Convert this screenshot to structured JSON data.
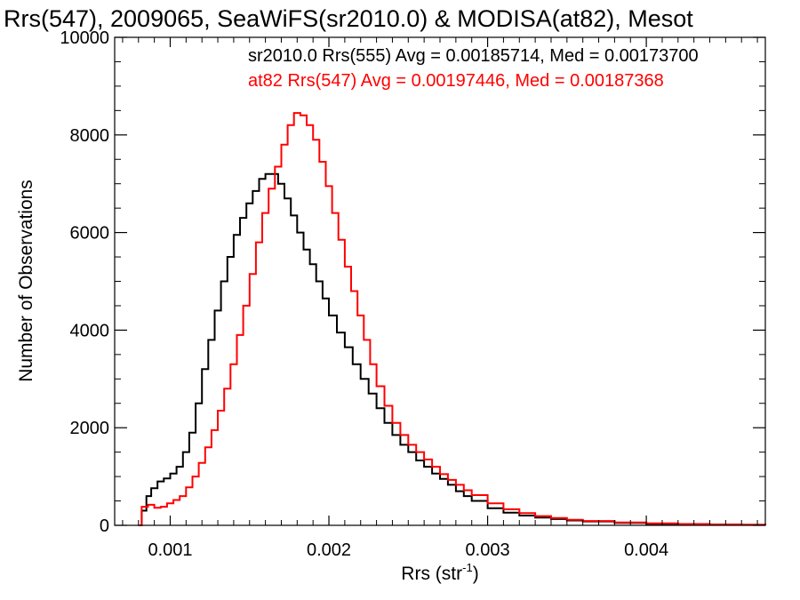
{
  "chart_data": {
    "type": "line",
    "title": "Rrs(547), 2009065, SeaWiFS(sr2010.0) & MODISA(at82), Mesot",
    "xlabel_main": "Rrs (str",
    "xlabel_sup": "-1",
    "xlabel_tail": ")",
    "ylabel": "Number of Observations",
    "xlim": [
      0.00065,
      0.00475
    ],
    "ylim": [
      0,
      10000
    ],
    "x_ticks": [
      0.001,
      0.002,
      0.003,
      0.004
    ],
    "x_tick_labels": [
      "0.001",
      "0.002",
      "0.003",
      "0.004"
    ],
    "y_ticks": [
      0,
      2000,
      4000,
      6000,
      8000,
      10000
    ],
    "y_tick_labels": [
      "0",
      "2000",
      "4000",
      "6000",
      "8000",
      "10000"
    ],
    "grid": false,
    "legend_position": "top-right",
    "series": [
      {
        "name": "sr2010.0 Rrs(555) Avg = 0.00185714, Med = 0.00173700",
        "color": "#000000",
        "points": [
          [
            0.0008,
            0
          ],
          [
            0.00082,
            300
          ],
          [
            0.00085,
            600
          ],
          [
            0.00088,
            760
          ],
          [
            0.00092,
            900
          ],
          [
            0.00096,
            960
          ],
          [
            0.001,
            1060
          ],
          [
            0.00104,
            1200
          ],
          [
            0.00108,
            1500
          ],
          [
            0.00112,
            1900
          ],
          [
            0.00116,
            2500
          ],
          [
            0.0012,
            3200
          ],
          [
            0.00124,
            3800
          ],
          [
            0.00128,
            4400
          ],
          [
            0.00132,
            5000
          ],
          [
            0.00136,
            5500
          ],
          [
            0.0014,
            5950
          ],
          [
            0.00144,
            6300
          ],
          [
            0.00148,
            6600
          ],
          [
            0.00152,
            6850
          ],
          [
            0.00156,
            7100
          ],
          [
            0.0016,
            7200
          ],
          [
            0.00164,
            7200
          ],
          [
            0.00168,
            7000
          ],
          [
            0.00172,
            6700
          ],
          [
            0.00176,
            6350
          ],
          [
            0.0018,
            6000
          ],
          [
            0.00184,
            5650
          ],
          [
            0.00188,
            5350
          ],
          [
            0.00192,
            5000
          ],
          [
            0.00196,
            4650
          ],
          [
            0.002,
            4300
          ],
          [
            0.00205,
            3950
          ],
          [
            0.0021,
            3650
          ],
          [
            0.00215,
            3300
          ],
          [
            0.0022,
            3000
          ],
          [
            0.00225,
            2700
          ],
          [
            0.0023,
            2400
          ],
          [
            0.00235,
            2100
          ],
          [
            0.0024,
            1850
          ],
          [
            0.00245,
            1650
          ],
          [
            0.0025,
            1500
          ],
          [
            0.00255,
            1330
          ],
          [
            0.0026,
            1200
          ],
          [
            0.00265,
            1060
          ],
          [
            0.0027,
            950
          ],
          [
            0.00275,
            830
          ],
          [
            0.0028,
            700
          ],
          [
            0.00285,
            600
          ],
          [
            0.0029,
            500
          ],
          [
            0.003,
            350
          ],
          [
            0.0031,
            260
          ],
          [
            0.0032,
            200
          ],
          [
            0.0033,
            160
          ],
          [
            0.0034,
            130
          ],
          [
            0.0035,
            100
          ],
          [
            0.0036,
            80
          ],
          [
            0.0038,
            50
          ],
          [
            0.004,
            30
          ],
          [
            0.0042,
            20
          ],
          [
            0.0044,
            15
          ],
          [
            0.0046,
            10
          ],
          [
            0.00475,
            5
          ]
        ]
      },
      {
        "name": "at82 Rrs(547) Avg = 0.00197446, Med = 0.00187368",
        "color": "#ff0000",
        "points": [
          [
            0.0008,
            0
          ],
          [
            0.00082,
            380
          ],
          [
            0.00086,
            420
          ],
          [
            0.0009,
            360
          ],
          [
            0.00094,
            380
          ],
          [
            0.00098,
            450
          ],
          [
            0.00102,
            520
          ],
          [
            0.00106,
            600
          ],
          [
            0.0011,
            780
          ],
          [
            0.00114,
            1000
          ],
          [
            0.00118,
            1280
          ],
          [
            0.00122,
            1600
          ],
          [
            0.00126,
            1950
          ],
          [
            0.0013,
            2350
          ],
          [
            0.00134,
            2800
          ],
          [
            0.00138,
            3300
          ],
          [
            0.00142,
            3900
          ],
          [
            0.00146,
            4500
          ],
          [
            0.0015,
            5150
          ],
          [
            0.00154,
            5800
          ],
          [
            0.00158,
            6400
          ],
          [
            0.00162,
            6900
          ],
          [
            0.00166,
            7350
          ],
          [
            0.0017,
            7800
          ],
          [
            0.00174,
            8200
          ],
          [
            0.00178,
            8450
          ],
          [
            0.00182,
            8400
          ],
          [
            0.00186,
            8200
          ],
          [
            0.0019,
            7900
          ],
          [
            0.00194,
            7450
          ],
          [
            0.00198,
            6950
          ],
          [
            0.00202,
            6400
          ],
          [
            0.00206,
            5850
          ],
          [
            0.0021,
            5300
          ],
          [
            0.00214,
            4800
          ],
          [
            0.00218,
            4300
          ],
          [
            0.00222,
            3800
          ],
          [
            0.00226,
            3300
          ],
          [
            0.0023,
            2850
          ],
          [
            0.00235,
            2450
          ],
          [
            0.0024,
            2100
          ],
          [
            0.00245,
            1850
          ],
          [
            0.0025,
            1650
          ],
          [
            0.00255,
            1500
          ],
          [
            0.0026,
            1350
          ],
          [
            0.00265,
            1200
          ],
          [
            0.0027,
            1050
          ],
          [
            0.00275,
            930
          ],
          [
            0.0028,
            830
          ],
          [
            0.00285,
            720
          ],
          [
            0.0029,
            620
          ],
          [
            0.003,
            450
          ],
          [
            0.0031,
            330
          ],
          [
            0.0032,
            250
          ],
          [
            0.0033,
            190
          ],
          [
            0.0034,
            150
          ],
          [
            0.0035,
            115
          ],
          [
            0.0036,
            90
          ],
          [
            0.0038,
            60
          ],
          [
            0.004,
            40
          ],
          [
            0.0042,
            28
          ],
          [
            0.0044,
            18
          ],
          [
            0.0046,
            12
          ],
          [
            0.00475,
            8
          ]
        ]
      }
    ]
  }
}
